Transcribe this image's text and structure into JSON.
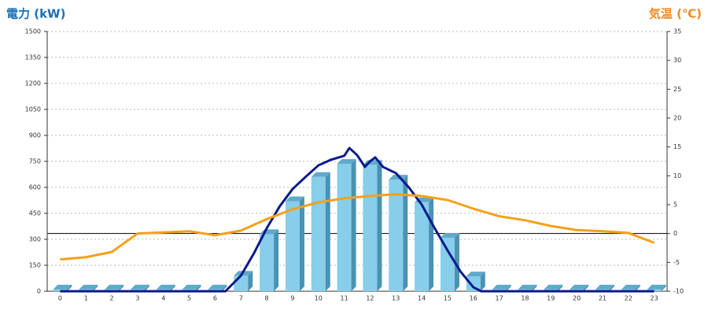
{
  "chart_data": {
    "type": "combo",
    "title_left": "電力 (kW)",
    "title_right": "気温 (℃)",
    "title_left_color": "#1a6fb5",
    "title_right_color": "#f08a24",
    "categories": [
      "0",
      "1",
      "2",
      "3",
      "4",
      "5",
      "6",
      "7",
      "8",
      "9",
      "10",
      "11",
      "12",
      "13",
      "14",
      "15",
      "16",
      "17",
      "18",
      "19",
      "20",
      "21",
      "22",
      "23"
    ],
    "ylim": [
      0,
      1500
    ],
    "yticks": [
      0,
      150,
      300,
      450,
      600,
      750,
      900,
      1050,
      1200,
      1350,
      1500
    ],
    "y2lim": [
      -10,
      35
    ],
    "y2ticks": [
      -10,
      -5,
      0,
      5,
      10,
      15,
      20,
      25,
      30,
      35
    ],
    "grid": true,
    "zero_line_y2": true,
    "series": [
      {
        "type": "bar",
        "color": "#87ceeb",
        "values": [
          10,
          10,
          10,
          10,
          10,
          10,
          10,
          90,
          330,
          520,
          660,
          736,
          730,
          645,
          514,
          309,
          86,
          10,
          10,
          10,
          10,
          10,
          10,
          10
        ]
      },
      {
        "type": "line",
        "color": "#0a1a8c",
        "x": [
          0,
          6.4,
          7,
          7.5,
          8,
          8.5,
          9,
          9.5,
          10,
          10.5,
          11,
          11.2,
          11.5,
          11.8,
          12,
          12.2,
          12.5,
          13,
          13.5,
          14,
          14.5,
          15,
          15.5,
          16,
          16.3,
          23
        ],
        "values": [
          0,
          0,
          90,
          218,
          364,
          490,
          590,
          660,
          727,
          760,
          782,
          827,
          786,
          718,
          750,
          773,
          718,
          682,
          600,
          500,
          364,
          236,
          114,
          23,
          0,
          0
        ]
      },
      {
        "type": "line",
        "axis": "y2",
        "color": "#f5a01a",
        "values": [
          -4.5,
          -4.1,
          -3.2,
          0,
          0.2,
          0.4,
          -0.3,
          0.5,
          2.5,
          4.2,
          5.4,
          6.1,
          6.5,
          6.8,
          6.5,
          5.8,
          4.3,
          3.0,
          2.3,
          1.3,
          0.6,
          0.4,
          0.1,
          -1.6
        ]
      }
    ]
  }
}
